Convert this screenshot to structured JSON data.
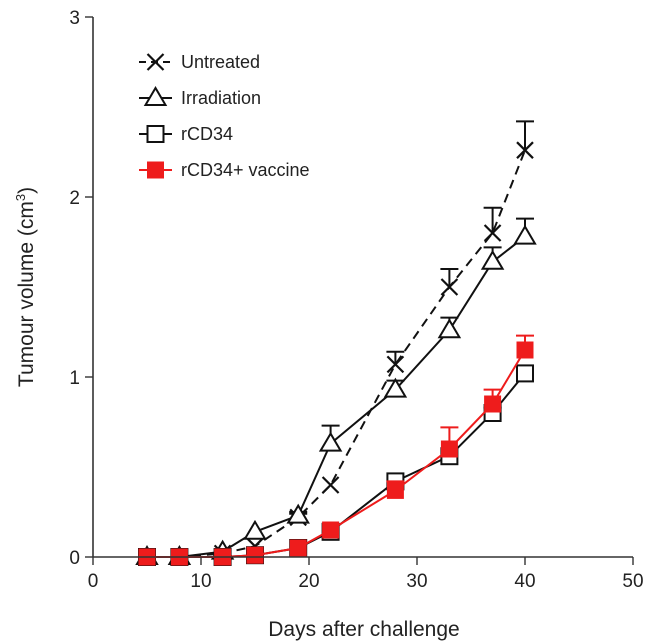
{
  "chart_data": {
    "type": "line",
    "title": "",
    "xlabel": "Days after challenge",
    "ylabel_main": "Tumour volume (cm",
    "ylabel_sup": "3",
    "ylabel_close": ")",
    "xlim": [
      0,
      50
    ],
    "ylim": [
      0,
      3
    ],
    "xticks": [
      0,
      10,
      20,
      30,
      40,
      50
    ],
    "yticks": [
      0,
      1,
      2,
      3
    ],
    "legend_position": "top-left",
    "grid": false,
    "series": [
      {
        "name": "Untreated",
        "marker": "x",
        "dash": true,
        "color": "#111111",
        "x": [
          5,
          8,
          12,
          15,
          19,
          22,
          28,
          33,
          37,
          40
        ],
        "y": [
          0.0,
          0.0,
          0.02,
          0.06,
          0.22,
          0.4,
          1.07,
          1.5,
          1.8,
          2.26
        ],
        "err": [
          0,
          0,
          0,
          0,
          0.02,
          0,
          0.07,
          0.1,
          0.14,
          0.16
        ]
      },
      {
        "name": "Irradiation",
        "marker": "triangle",
        "dash": false,
        "color": "#111111",
        "x": [
          5,
          8,
          12,
          15,
          19,
          22,
          28,
          33,
          37,
          40
        ],
        "y": [
          0.0,
          0.0,
          0.03,
          0.14,
          0.23,
          0.63,
          0.93,
          1.26,
          1.64,
          1.78
        ],
        "err": [
          0,
          0,
          0,
          0,
          0.02,
          0.1,
          0.05,
          0.07,
          0.08,
          0.1
        ]
      },
      {
        "name": "rCD34",
        "marker": "square-open",
        "dash": false,
        "color": "#111111",
        "x": [
          5,
          8,
          12,
          15,
          19,
          22,
          28,
          33,
          37,
          40
        ],
        "y": [
          0.0,
          0.0,
          0.0,
          0.01,
          0.05,
          0.14,
          0.42,
          0.56,
          0.8,
          1.02
        ],
        "err": [
          0,
          0,
          0,
          0,
          0,
          0,
          0,
          0,
          0.03,
          0.03
        ]
      },
      {
        "name": "rCD34+ vaccine",
        "marker": "square-filled",
        "dash": false,
        "color": "#ee1c1c",
        "x": [
          5,
          8,
          12,
          15,
          19,
          22,
          28,
          33,
          37,
          40
        ],
        "y": [
          0.0,
          0.0,
          0.0,
          0.01,
          0.05,
          0.15,
          0.37,
          0.6,
          0.85,
          1.15
        ],
        "err": [
          0,
          0,
          0,
          0,
          0,
          0,
          0.05,
          0.12,
          0.08,
          0.08
        ]
      }
    ]
  }
}
